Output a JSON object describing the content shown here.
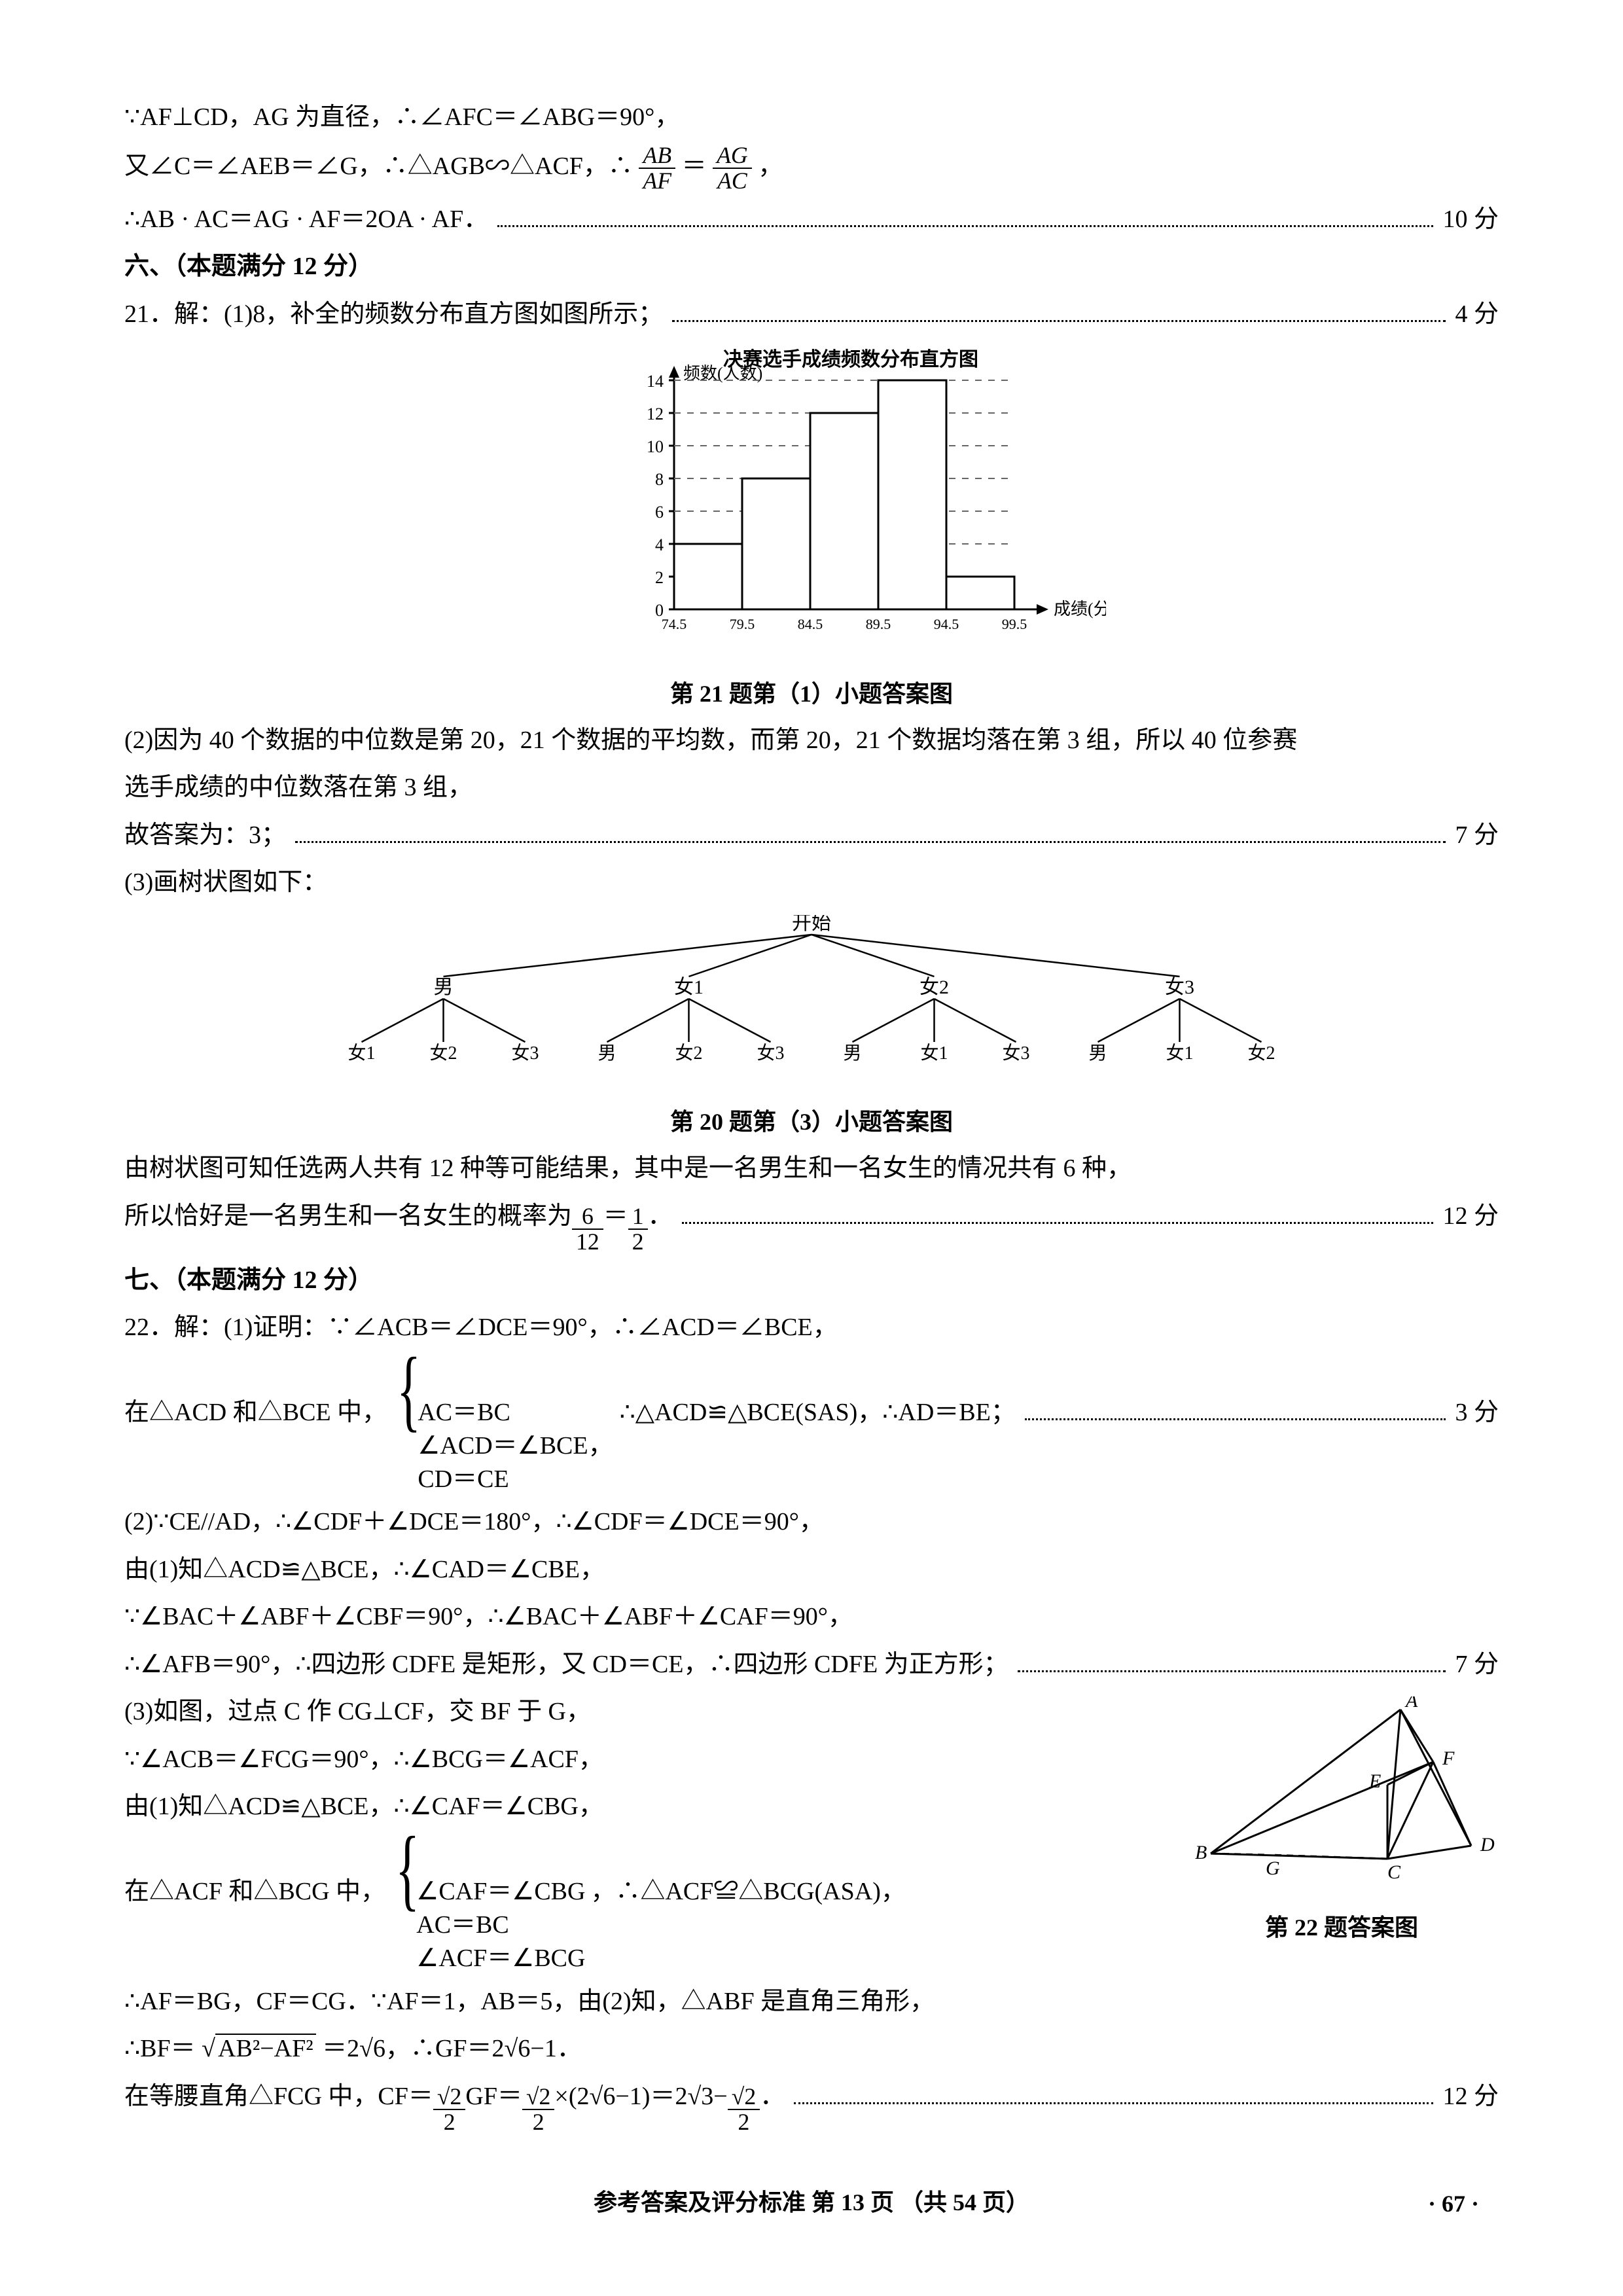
{
  "q20": {
    "line1": "∵AF⊥CD，AG 为直径，∴∠AFC＝∠ABG＝90°，",
    "line2_pre": "又∠C＝∠AEB＝∠G，∴△AGB∽△ACF，∴",
    "frac_ab": "AB",
    "frac_af": "AF",
    "eq": "＝",
    "frac_ag": "AG",
    "frac_ac": "AC",
    "comma": "，",
    "line3_pre": "∴AB · AC＝AG · AF＝2OA · AF．",
    "score3": "10 分"
  },
  "sec6": "六、（本题满分 12 分）",
  "q21": {
    "head": "21．解：(1)8，补全的频数分布直方图如图所示；",
    "score1": "4 分",
    "chart": {
      "title_top": "决赛选手成绩频数分布直方图",
      "ylabel": "频数(人数)",
      "xlabel": "成绩(分)",
      "yticks": [
        0,
        2,
        4,
        6,
        8,
        10,
        12,
        14
      ],
      "xticks": [
        "74.5",
        "79.5",
        "84.5",
        "89.5",
        "94.5",
        "99.5"
      ],
      "values": [
        4,
        8,
        12,
        14,
        2
      ],
      "axis_color": "#000000",
      "grid_color": "#666666",
      "bar_fill": "#ffffff",
      "bar_stroke": "#000000",
      "caption": "第 21 题第（1）小题答案图"
    },
    "p2a": "(2)因为 40 个数据的中位数是第 20，21 个数据的平均数，而第 20，21 个数据均落在第 3 组，所以 40 位参赛",
    "p2b": "选手成绩的中位数落在第 3 组，",
    "p2c_pre": "故答案为：3；",
    "score2": "7 分",
    "p3_head": "(3)画树状图如下：",
    "tree": {
      "root": "开始",
      "level1": [
        "男",
        "女1",
        "女2",
        "女3"
      ],
      "children": [
        [
          "女1",
          "女2",
          "女3"
        ],
        [
          "男",
          "女2",
          "女3"
        ],
        [
          "男",
          "女1",
          "女3"
        ],
        [
          "男",
          "女1",
          "女2"
        ]
      ],
      "caption": "第 20 题第（3）小题答案图",
      "stroke": "#000000"
    },
    "p3a": "由树状图可知任选两人共有 12 种等可能结果，其中是一名男生和一名女生的情况共有 6 种，",
    "p3b_pre": "所以恰好是一名男生和一名女生的概率为",
    "frac6": "6",
    "frac12": "12",
    "eq": "＝",
    "frac1": "1",
    "frac2": "2",
    "dot": "．",
    "score3": "12 分"
  },
  "sec7": "七、（本题满分 12 分）",
  "q22": {
    "p1a": "22．解：(1)证明：∵∠ACB＝∠DCE＝90°，∴∠ACD＝∠BCE，",
    "p1b_pre": "在△ACD 和△BCE 中，",
    "brace1": [
      "AC＝BC",
      "∠ACD＝∠BCE，",
      "CD＝CE"
    ],
    "p1b_post": "∴△ACD≌△BCE(SAS)，∴AD＝BE；",
    "score1": "3 分",
    "p2a": "(2)∵CE//AD，∴∠CDF＋∠DCE＝180°，∴∠CDF＝∠DCE＝90°，",
    "p2b": "由(1)知△ACD≌△BCE，∴∠CAD＝∠CBE，",
    "p2c": "∵∠BAC＋∠ABF＋∠CBF＝90°，∴∠BAC＋∠ABF＋∠CAF＝90°，",
    "p2d_pre": "∴∠AFB＝90°，∴四边形 CDFE 是矩形，又 CD＝CE，∴四边形 CDFE 为正方形；",
    "score2": "7 分",
    "p3a": "(3)如图，过点 C 作 CG⊥CF，交 BF 于 G，",
    "p3b": "∵∠ACB＝∠FCG＝90°，∴∠BCG＝∠ACF，",
    "p3c": "由(1)知△ACD≌△BCE，∴∠CAF＝∠CBG，",
    "p3d_pre": "在△ACF 和△BCG 中，",
    "brace2": [
      "∠CAF＝∠CBG",
      "AC＝BC",
      "∠ACF＝∠BCG"
    ],
    "p3d_post": "，∴△ACF≌△BCG(ASA)，",
    "p3e": "∴AF＝BG，CF＝CG．∵AF＝1，AB＝5，由(2)知，△ABF 是直角三角形，",
    "p3f_pre": "∴BF＝",
    "p3f_sqrt": "√(AB²−AF²)",
    "p3f_mid": "＝2√6，∴GF＝2√6−1．",
    "p3g_pre": "在等腰直角△FCG 中，CF＝",
    "rt2": "√2",
    "two": "2",
    "p3g_mid1": "GF＝",
    "p3g_mid2": "×(2√6−1)＝2√3−",
    "dot": "．",
    "score3": "12 分",
    "geom": {
      "caption": "第 22 题答案图",
      "labels": {
        "A": "A",
        "B": "B",
        "C": "C",
        "D": "D",
        "E": "E",
        "F": "F",
        "G": "G"
      },
      "stroke": "#000000"
    }
  },
  "footer_center": "参考答案及评分标准  第 13 页  （共 54 页）",
  "page_no": "· 67 ·"
}
